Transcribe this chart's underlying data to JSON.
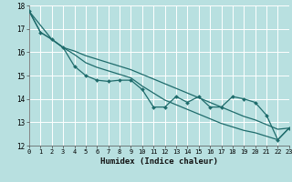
{
  "xlabel": "Humidex (Indice chaleur)",
  "bg_color": "#b8e0e0",
  "line_color": "#1e6b6b",
  "grid_color": "#d0f0f0",
  "xlim": [
    0,
    23
  ],
  "ylim": [
    12,
    18
  ],
  "yticks": [
    12,
    13,
    14,
    15,
    16,
    17,
    18
  ],
  "xticks": [
    0,
    1,
    2,
    3,
    4,
    5,
    6,
    7,
    8,
    9,
    10,
    11,
    12,
    13,
    14,
    15,
    16,
    17,
    18,
    19,
    20,
    21,
    22,
    23
  ],
  "line1_x": [
    0,
    1,
    2,
    3,
    4,
    5,
    6,
    7,
    8,
    9,
    10,
    11,
    12,
    13,
    14,
    15,
    16,
    17,
    18,
    19,
    20,
    21,
    22,
    23
  ],
  "line1_y": [
    17.75,
    16.85,
    16.55,
    16.2,
    15.4,
    15.0,
    14.8,
    14.75,
    14.8,
    14.8,
    14.4,
    13.65,
    13.65,
    14.1,
    13.85,
    14.1,
    13.65,
    13.65,
    14.1,
    14.0,
    13.85,
    13.3,
    12.25,
    12.75
  ],
  "line2_x": [
    0,
    2,
    3,
    4,
    5,
    6,
    7,
    8,
    9,
    10,
    11,
    12,
    13,
    14,
    15,
    16,
    17,
    18,
    19,
    20,
    21,
    22,
    23
  ],
  "line2_y": [
    17.75,
    16.55,
    16.2,
    16.05,
    15.85,
    15.7,
    15.55,
    15.4,
    15.25,
    15.05,
    14.85,
    14.65,
    14.45,
    14.25,
    14.05,
    13.85,
    13.65,
    13.45,
    13.25,
    13.1,
    12.9,
    12.7,
    12.75
  ],
  "line3_x": [
    0,
    1,
    2,
    3,
    4,
    5,
    6,
    7,
    8,
    9,
    10,
    11,
    12,
    13,
    14,
    15,
    16,
    17,
    18,
    19,
    20,
    21,
    22,
    23
  ],
  "line3_y": [
    17.75,
    16.85,
    16.55,
    16.2,
    15.9,
    15.55,
    15.35,
    15.2,
    15.05,
    14.9,
    14.55,
    14.25,
    13.95,
    13.75,
    13.55,
    13.35,
    13.15,
    12.95,
    12.8,
    12.65,
    12.55,
    12.4,
    12.25,
    12.75
  ]
}
